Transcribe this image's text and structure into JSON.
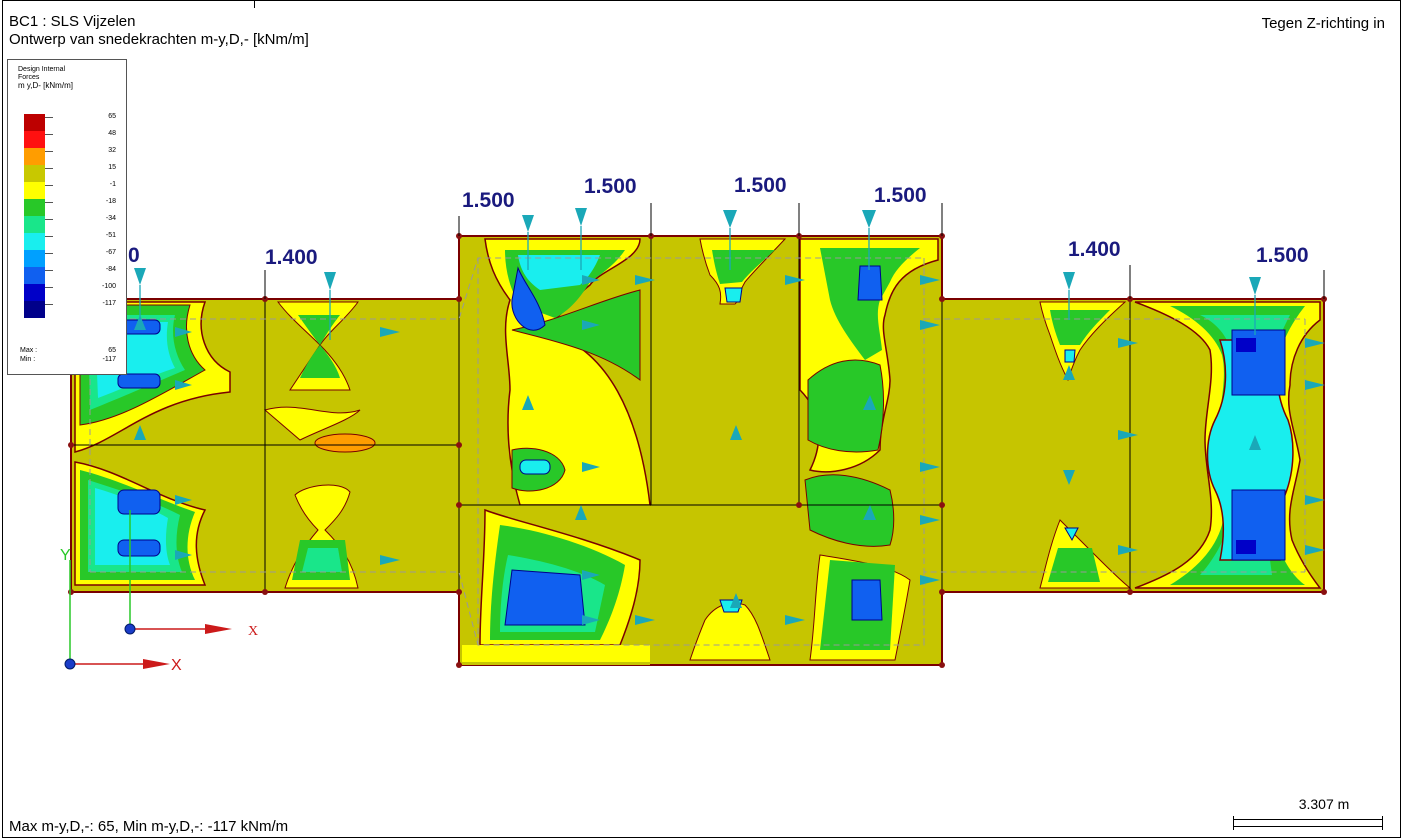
{
  "header": {
    "title_line1": "BC1 : SLS Vijzelen",
    "title_line2": "Ontwerp van snedekrachten m-y,D,- [kNm/m]",
    "view_direction": "Tegen Z-richting in"
  },
  "legend": {
    "title_line1": "Design Internal",
    "title_line2": "Forces",
    "title_line3": "m y,D- [kNm/m]",
    "values": [
      "65",
      "48",
      "32",
      "15",
      "-1",
      "-18",
      "-34",
      "-51",
      "-67",
      "-84",
      "-100",
      "-117"
    ],
    "colors": [
      "#bd0000",
      "#ff1010",
      "#ff9d00",
      "#c8c800",
      "#ffff00",
      "#28c828",
      "#19e68a",
      "#19eeee",
      "#00a0ff",
      "#1060f0",
      "#0000c8",
      "#00008a"
    ],
    "max_label": "Max :",
    "min_label": "Min :",
    "max_value": "65",
    "min_value": "-117"
  },
  "dimensions": [
    "0",
    "1.400",
    "1.500",
    "1.500",
    "1.500",
    "1.500",
    "1.400",
    "1.500"
  ],
  "axes": {
    "global_x": "X",
    "global_y": "Y",
    "local_x": "X"
  },
  "footer": {
    "summary": "Max m-y,D,-: 65, Min m-y,D,-: -117 kNm/m",
    "scale": "3.307 m"
  }
}
